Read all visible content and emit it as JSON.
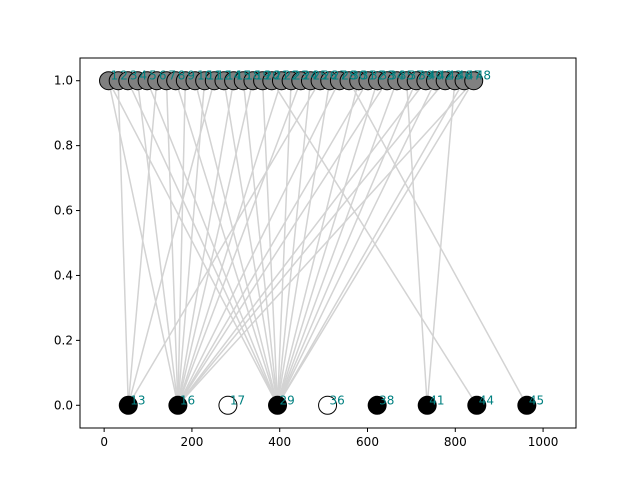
{
  "chart_data": {
    "type": "scatter",
    "subtype": "bipartite-graph",
    "xlim": [
      -55,
      1075
    ],
    "ylim": [
      -0.07,
      1.07
    ],
    "xticks": [
      0,
      200,
      400,
      600,
      800,
      1000
    ],
    "xtick_labels": [
      "0",
      "200",
      "400",
      "600",
      "800",
      "1000"
    ],
    "yticks": [
      0.0,
      0.2,
      0.4,
      0.6,
      0.8,
      1.0
    ],
    "ytick_labels": [
      "0.0",
      "0.2",
      "0.4",
      "0.6",
      "0.8",
      "1.0"
    ],
    "grid": false,
    "top_nodes": [
      {
        "id": "1",
        "x": 10
      },
      {
        "id": "2",
        "x": 32
      },
      {
        "id": "3",
        "x": 54
      },
      {
        "id": "4",
        "x": 76
      },
      {
        "id": "5",
        "x": 98
      },
      {
        "id": "6",
        "x": 120
      },
      {
        "id": "7",
        "x": 142
      },
      {
        "id": "8",
        "x": 163
      },
      {
        "id": "9",
        "x": 185
      },
      {
        "id": "10",
        "x": 207
      },
      {
        "id": "11",
        "x": 229
      },
      {
        "id": "12",
        "x": 251
      },
      {
        "id": "14",
        "x": 273
      },
      {
        "id": "15",
        "x": 295
      },
      {
        "id": "18",
        "x": 317
      },
      {
        "id": "19",
        "x": 339
      },
      {
        "id": "20",
        "x": 361
      },
      {
        "id": "21",
        "x": 382
      },
      {
        "id": "22",
        "x": 404
      },
      {
        "id": "23",
        "x": 426
      },
      {
        "id": "24",
        "x": 448
      },
      {
        "id": "25",
        "x": 470
      },
      {
        "id": "26",
        "x": 492
      },
      {
        "id": "27",
        "x": 514
      },
      {
        "id": "28",
        "x": 536
      },
      {
        "id": "30",
        "x": 558
      },
      {
        "id": "31",
        "x": 580
      },
      {
        "id": "32",
        "x": 601
      },
      {
        "id": "33",
        "x": 623
      },
      {
        "id": "34",
        "x": 645
      },
      {
        "id": "35",
        "x": 667
      },
      {
        "id": "37",
        "x": 689
      },
      {
        "id": "39",
        "x": 711
      },
      {
        "id": "40",
        "x": 733
      },
      {
        "id": "42",
        "x": 755
      },
      {
        "id": "43",
        "x": 777
      },
      {
        "id": "46",
        "x": 799
      },
      {
        "id": "47",
        "x": 820
      },
      {
        "id": "48",
        "x": 842
      }
    ],
    "top_node_color": "#808080",
    "bottom_nodes": [
      {
        "id": "13",
        "x": 55,
        "fill": "#000000"
      },
      {
        "id": "16",
        "x": 168,
        "fill": "#000000"
      },
      {
        "id": "17",
        "x": 282,
        "fill": "#ffffff"
      },
      {
        "id": "29",
        "x": 395,
        "fill": "#000000"
      },
      {
        "id": "36",
        "x": 509,
        "fill": "#ffffff"
      },
      {
        "id": "38",
        "x": 622,
        "fill": "#000000"
      },
      {
        "id": "41",
        "x": 736,
        "fill": "#000000"
      },
      {
        "id": "44",
        "x": 849,
        "fill": "#000000"
      },
      {
        "id": "45",
        "x": 963,
        "fill": "#000000"
      }
    ],
    "edges": [
      [
        "1",
        "16"
      ],
      [
        "1",
        "29"
      ],
      [
        "2",
        "13"
      ],
      [
        "3",
        "29"
      ],
      [
        "4",
        "16"
      ],
      [
        "5",
        "29"
      ],
      [
        "6",
        "13"
      ],
      [
        "7",
        "16"
      ],
      [
        "8",
        "29"
      ],
      [
        "9",
        "16"
      ],
      [
        "10",
        "29"
      ],
      [
        "11",
        "16"
      ],
      [
        "12",
        "13"
      ],
      [
        "14",
        "29"
      ],
      [
        "15",
        "16"
      ],
      [
        "18",
        "29"
      ],
      [
        "19",
        "16"
      ],
      [
        "20",
        "29"
      ],
      [
        "21",
        "44"
      ],
      [
        "22",
        "16"
      ],
      [
        "23",
        "29"
      ],
      [
        "24",
        "16"
      ],
      [
        "25",
        "29"
      ],
      [
        "26",
        "13"
      ],
      [
        "27",
        "29"
      ],
      [
        "28",
        "16"
      ],
      [
        "30",
        "45"
      ],
      [
        "31",
        "29"
      ],
      [
        "32",
        "16"
      ],
      [
        "33",
        "29"
      ],
      [
        "34",
        "16"
      ],
      [
        "35",
        "29"
      ],
      [
        "37",
        "41"
      ],
      [
        "39",
        "29"
      ],
      [
        "40",
        "16"
      ],
      [
        "42",
        "29"
      ],
      [
        "43",
        "16"
      ],
      [
        "46",
        "41"
      ],
      [
        "47",
        "29"
      ],
      [
        "48",
        "16"
      ],
      [
        "48",
        "29"
      ]
    ],
    "edge_color": "#d3d3d3",
    "label_color": "#008080"
  }
}
